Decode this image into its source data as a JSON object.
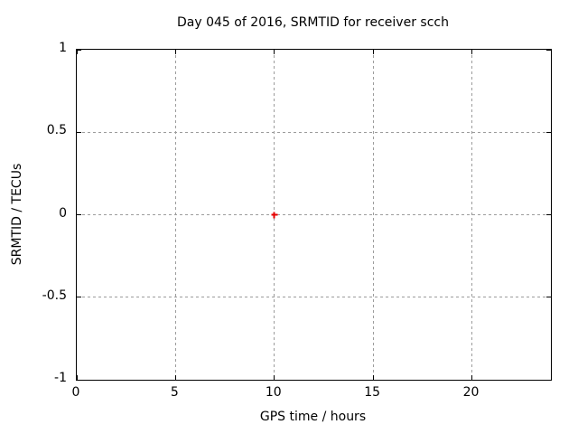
{
  "chart_data": {
    "type": "scatter",
    "title": "Day 045 of 2016, SRMTID for receiver scch",
    "xlabel": "GPS time / hours",
    "ylabel": "SRMTID / TECUs",
    "xlim": [
      0,
      24
    ],
    "ylim": [
      -1,
      1
    ],
    "xticks": [
      0,
      5,
      10,
      15,
      20
    ],
    "xtick_labels": [
      "0",
      "5",
      "10",
      "15",
      "20"
    ],
    "yticks": [
      1,
      0.5,
      0,
      -0.5,
      -1
    ],
    "ytick_labels": [
      "1",
      "0.5",
      "0",
      "-0.5",
      "-1"
    ],
    "grid": true,
    "legend": "none",
    "series": [
      {
        "marker": "plus",
        "color": "#e60000",
        "points": [
          [
            10,
            0
          ]
        ]
      }
    ],
    "axis_color": "#000000",
    "grid_color": "#9c9c9c",
    "background_color": "#ffffff"
  }
}
